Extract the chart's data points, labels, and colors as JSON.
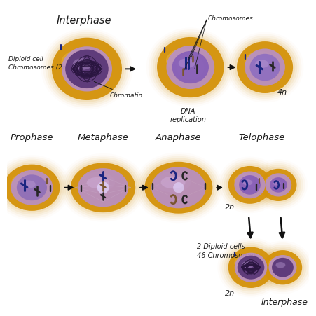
{
  "bg_color": "#ffffff",
  "outer_color": "#D4920A",
  "inner_color": "#B890C8",
  "nucleus_color": "#7850A8",
  "nucleus_dark": "#5a3878",
  "chromatin_color": "#2a1540",
  "chrom_blue": "#1a2580",
  "chrom_dark": "#252525",
  "chrom_brown": "#7a5530",
  "chrom_gray": "#504050",
  "text_color": "#1a1a1a",
  "arrow_color": "#111111",
  "labels": {
    "interphase": "Interphase",
    "prophase": "Prophase",
    "metaphase": "Metaphase",
    "anaphase": "Anaphase",
    "telophase": "Telophase",
    "interphase2": "Interphase",
    "diploid": "Diploid cell\nChromosomes (2n)",
    "chromatin": "Chromatin",
    "chromosomes": "Chromosomes",
    "dna_rep": "DNA\nreplication",
    "4n": "4n",
    "2n_top": "2n",
    "2n_bot": "2n",
    "diploid2": "2 Diploid cells\n46 Chromosomes"
  }
}
